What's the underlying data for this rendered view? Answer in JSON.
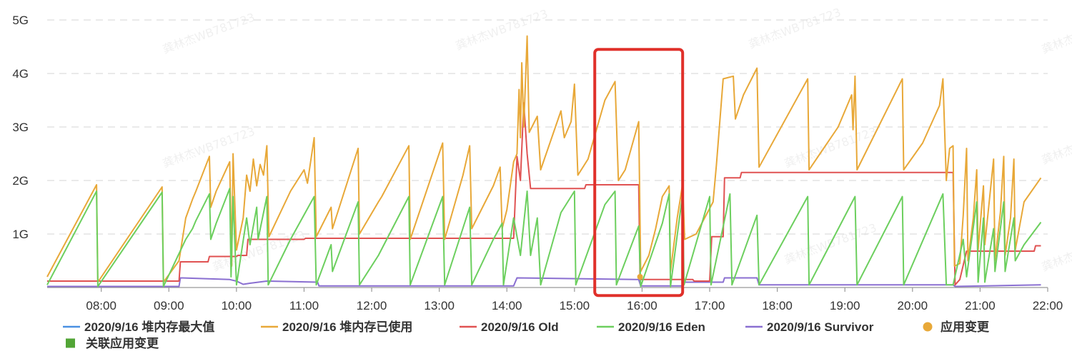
{
  "colors": {
    "heap_max": "#4a90e2",
    "heap_used": "#e8a838",
    "old": "#e05252",
    "eden": "#6ccf5e",
    "survivor": "#8a6fd1",
    "app_change": "#e8a838",
    "related_change": "#52a536",
    "highlight_box": "#e0302a",
    "grid": "#dddddd",
    "axis": "#999999"
  },
  "watermark_text": "龚林杰WB781723",
  "chart_data": {
    "type": "line",
    "title": "",
    "xlabel": "",
    "ylabel": "",
    "x_unit": "hour",
    "xlim": [
      7.2,
      22.0
    ],
    "ylim": [
      0,
      5
    ],
    "y_tick_values": [
      1,
      2,
      3,
      4,
      5
    ],
    "y_tick_labels": [
      "1G",
      "2G",
      "3G",
      "4G",
      "5G"
    ],
    "x_tick_values": [
      8,
      9,
      10,
      11,
      12,
      13,
      14,
      15,
      16,
      17,
      18,
      19,
      20,
      21,
      22
    ],
    "x_tick_labels": [
      "08:00",
      "09:00",
      "10:00",
      "11:00",
      "12:00",
      "13:00",
      "14:00",
      "15:00",
      "16:00",
      "17:00",
      "18:00",
      "19:00",
      "20:00",
      "21:00",
      "22:00"
    ],
    "grid": "horizontal dashed",
    "legend_position": "bottom",
    "highlight_range": {
      "x": [
        15.3,
        16.6
      ],
      "y": [
        -0.15,
        4.45
      ]
    },
    "series": [
      {
        "name": "2020/9/16 堆内存最大值",
        "key": "heap_max",
        "points": []
      },
      {
        "name": "2020/9/16 堆内存已使用",
        "key": "heap_used",
        "points": [
          [
            7.2,
            0.2
          ],
          [
            7.93,
            1.92
          ],
          [
            7.95,
            0.1
          ],
          [
            8.9,
            1.88
          ],
          [
            8.92,
            0.1
          ],
          [
            9.15,
            0.5
          ],
          [
            9.25,
            1.3
          ],
          [
            9.35,
            1.65
          ],
          [
            9.4,
            1.8
          ],
          [
            9.6,
            2.45
          ],
          [
            9.62,
            1.5
          ],
          [
            9.7,
            1.8
          ],
          [
            9.9,
            2.35
          ],
          [
            9.93,
            0.4
          ],
          [
            9.95,
            2.5
          ],
          [
            10.0,
            0.7
          ],
          [
            10.1,
            1.3
          ],
          [
            10.15,
            2.1
          ],
          [
            10.2,
            1.8
          ],
          [
            10.25,
            2.4
          ],
          [
            10.3,
            1.9
          ],
          [
            10.35,
            2.3
          ],
          [
            10.4,
            2.1
          ],
          [
            10.45,
            2.65
          ],
          [
            10.48,
            0.95
          ],
          [
            10.8,
            1.8
          ],
          [
            11.0,
            2.2
          ],
          [
            11.05,
            1.95
          ],
          [
            11.15,
            2.8
          ],
          [
            11.18,
            0.95
          ],
          [
            11.4,
            1.5
          ],
          [
            11.42,
            1.1
          ],
          [
            11.8,
            2.6
          ],
          [
            11.82,
            1.0
          ],
          [
            12.1,
            1.6
          ],
          [
            12.15,
            1.7
          ],
          [
            12.55,
            2.65
          ],
          [
            12.57,
            0.9
          ],
          [
            13.05,
            2.7
          ],
          [
            13.08,
            0.9
          ],
          [
            13.35,
            2.1
          ],
          [
            13.45,
            2.65
          ],
          [
            13.48,
            1.1
          ],
          [
            13.8,
            1.9
          ],
          [
            13.9,
            2.25
          ],
          [
            13.93,
            1.1
          ],
          [
            14.0,
            1.45
          ],
          [
            14.1,
            2.35
          ],
          [
            14.15,
            2.5
          ],
          [
            14.18,
            3.7
          ],
          [
            14.2,
            2.8
          ],
          [
            14.22,
            4.2
          ],
          [
            14.25,
            3.0
          ],
          [
            14.3,
            4.7
          ],
          [
            14.33,
            2.9
          ],
          [
            14.45,
            3.2
          ],
          [
            14.5,
            2.2
          ],
          [
            14.8,
            3.3
          ],
          [
            14.85,
            2.8
          ],
          [
            14.95,
            3.1
          ],
          [
            15.0,
            3.8
          ],
          [
            15.05,
            2.1
          ],
          [
            15.2,
            2.4
          ],
          [
            15.45,
            3.5
          ],
          [
            15.6,
            3.85
          ],
          [
            15.65,
            2.0
          ],
          [
            15.75,
            2.2
          ],
          [
            15.95,
            3.1
          ],
          [
            15.98,
            0.3
          ],
          [
            16.1,
            0.6
          ],
          [
            16.2,
            1.1
          ],
          [
            16.3,
            1.7
          ],
          [
            16.4,
            1.9
          ],
          [
            16.42,
            0.3
          ],
          [
            16.52,
            1.3
          ],
          [
            16.57,
            1.7
          ],
          [
            16.6,
            1.95
          ],
          [
            16.63,
            0.9
          ],
          [
            16.8,
            1.0
          ],
          [
            17.05,
            1.6
          ],
          [
            17.1,
            2.3
          ],
          [
            17.2,
            3.9
          ],
          [
            17.35,
            3.95
          ],
          [
            17.38,
            3.15
          ],
          [
            17.5,
            3.6
          ],
          [
            17.7,
            4.1
          ],
          [
            17.73,
            2.25
          ],
          [
            18.45,
            3.9
          ],
          [
            18.47,
            2.2
          ],
          [
            18.9,
            3.0
          ],
          [
            19.1,
            3.6
          ],
          [
            19.12,
            2.95
          ],
          [
            19.15,
            3.95
          ],
          [
            19.18,
            2.2
          ],
          [
            19.85,
            3.9
          ],
          [
            19.87,
            2.2
          ],
          [
            20.15,
            2.7
          ],
          [
            20.4,
            3.4
          ],
          [
            20.45,
            3.9
          ],
          [
            20.5,
            2.0
          ],
          [
            20.55,
            2.6
          ],
          [
            20.6,
            2.65
          ],
          [
            20.62,
            0.4
          ],
          [
            20.7,
            0.45
          ],
          [
            20.75,
            1.35
          ],
          [
            20.8,
            2.6
          ],
          [
            20.82,
            0.5
          ],
          [
            20.9,
            1.3
          ],
          [
            20.95,
            2.2
          ],
          [
            20.97,
            0.7
          ],
          [
            21.05,
            1.9
          ],
          [
            21.07,
            0.8
          ],
          [
            21.2,
            2.4
          ],
          [
            21.22,
            0.5
          ],
          [
            21.3,
            1.4
          ],
          [
            21.35,
            2.45
          ],
          [
            21.37,
            0.6
          ],
          [
            21.45,
            1.3
          ],
          [
            21.5,
            2.4
          ],
          [
            21.52,
            0.7
          ],
          [
            21.65,
            1.6
          ],
          [
            21.9,
            2.05
          ]
        ]
      },
      {
        "name": "2020/9/16 Old",
        "key": "old",
        "points": [
          [
            7.2,
            0.12
          ],
          [
            9.15,
            0.12
          ],
          [
            9.17,
            0.48
          ],
          [
            9.58,
            0.48
          ],
          [
            9.6,
            0.58
          ],
          [
            10.0,
            0.58
          ],
          [
            10.02,
            0.6
          ],
          [
            10.15,
            0.6
          ],
          [
            10.17,
            0.9
          ],
          [
            11.0,
            0.9
          ],
          [
            11.02,
            0.92
          ],
          [
            14.1,
            0.92
          ],
          [
            14.15,
            2.45
          ],
          [
            14.2,
            2.0
          ],
          [
            14.25,
            3.45
          ],
          [
            14.3,
            2.5
          ],
          [
            14.35,
            1.85
          ],
          [
            15.15,
            1.85
          ],
          [
            15.17,
            1.92
          ],
          [
            15.95,
            1.92
          ],
          [
            15.97,
            0.15
          ],
          [
            16.75,
            0.15
          ],
          [
            16.77,
            0.12
          ],
          [
            17.0,
            0.12
          ],
          [
            17.03,
            0.95
          ],
          [
            17.2,
            0.95
          ],
          [
            17.22,
            2.05
          ],
          [
            17.45,
            2.05
          ],
          [
            17.47,
            2.15
          ],
          [
            20.6,
            2.15
          ],
          [
            20.63,
            0.05
          ],
          [
            20.7,
            0.15
          ],
          [
            20.8,
            0.68
          ],
          [
            21.8,
            0.68
          ],
          [
            21.82,
            0.78
          ],
          [
            21.9,
            0.78
          ]
        ]
      },
      {
        "name": "2020/9/16 Eden",
        "key": "eden",
        "points": [
          [
            7.2,
            0.05
          ],
          [
            7.93,
            1.8
          ],
          [
            7.95,
            0.02
          ],
          [
            8.9,
            1.78
          ],
          [
            8.92,
            0.02
          ],
          [
            9.25,
            0.9
          ],
          [
            9.35,
            1.1
          ],
          [
            9.4,
            1.25
          ],
          [
            9.6,
            1.75
          ],
          [
            9.62,
            0.9
          ],
          [
            9.7,
            1.2
          ],
          [
            9.9,
            1.85
          ],
          [
            9.92,
            0.2
          ],
          [
            9.95,
            1.7
          ],
          [
            10.0,
            0.05
          ],
          [
            10.15,
            1.3
          ],
          [
            10.2,
            0.8
          ],
          [
            10.3,
            1.5
          ],
          [
            10.32,
            0.9
          ],
          [
            10.45,
            1.7
          ],
          [
            10.47,
            0.05
          ],
          [
            10.8,
            0.9
          ],
          [
            11.15,
            1.7
          ],
          [
            11.18,
            0.05
          ],
          [
            11.4,
            0.8
          ],
          [
            11.42,
            0.3
          ],
          [
            11.8,
            1.6
          ],
          [
            11.82,
            0.05
          ],
          [
            12.1,
            0.6
          ],
          [
            12.55,
            1.7
          ],
          [
            12.57,
            0.05
          ],
          [
            13.05,
            1.7
          ],
          [
            13.08,
            0.05
          ],
          [
            13.45,
            1.5
          ],
          [
            13.48,
            0.05
          ],
          [
            13.8,
            0.9
          ],
          [
            13.93,
            1.2
          ],
          [
            13.95,
            0.05
          ],
          [
            14.1,
            1.3
          ],
          [
            14.2,
            0.6
          ],
          [
            14.3,
            1.8
          ],
          [
            14.35,
            0.6
          ],
          [
            14.45,
            1.3
          ],
          [
            14.5,
            0.05
          ],
          [
            14.8,
            1.4
          ],
          [
            15.0,
            1.8
          ],
          [
            15.02,
            0.05
          ],
          [
            15.45,
            1.55
          ],
          [
            15.6,
            1.8
          ],
          [
            15.62,
            0.05
          ],
          [
            15.95,
            1.15
          ],
          [
            15.98,
            0.02
          ],
          [
            16.3,
            1.2
          ],
          [
            16.4,
            1.75
          ],
          [
            16.42,
            0.02
          ],
          [
            16.6,
            1.75
          ],
          [
            16.62,
            0.05
          ],
          [
            17.0,
            1.7
          ],
          [
            17.02,
            0.05
          ],
          [
            17.3,
            1.75
          ],
          [
            17.33,
            0.05
          ],
          [
            17.7,
            1.35
          ],
          [
            17.73,
            0.05
          ],
          [
            18.45,
            1.7
          ],
          [
            18.47,
            0.05
          ],
          [
            19.15,
            1.7
          ],
          [
            19.18,
            0.05
          ],
          [
            19.85,
            1.7
          ],
          [
            19.87,
            0.05
          ],
          [
            20.45,
            1.75
          ],
          [
            20.5,
            0.05
          ],
          [
            20.6,
            0.05
          ],
          [
            20.75,
            0.9
          ],
          [
            20.8,
            0.2
          ],
          [
            20.95,
            1.6
          ],
          [
            20.97,
            0.1
          ],
          [
            21.05,
            1.3
          ],
          [
            21.07,
            0.1
          ],
          [
            21.2,
            1.1
          ],
          [
            21.22,
            0.3
          ],
          [
            21.35,
            1.6
          ],
          [
            21.37,
            0.3
          ],
          [
            21.5,
            1.3
          ],
          [
            21.52,
            0.5
          ],
          [
            21.65,
            0.8
          ],
          [
            21.9,
            1.22
          ]
        ]
      },
      {
        "name": "2020/9/16 Survivor",
        "key": "survivor",
        "points": [
          [
            7.2,
            0.02
          ],
          [
            9.15,
            0.02
          ],
          [
            9.17,
            0.18
          ],
          [
            9.9,
            0.15
          ],
          [
            10.0,
            0.12
          ],
          [
            10.1,
            0.06
          ],
          [
            10.2,
            0.08
          ],
          [
            10.45,
            0.12
          ],
          [
            11.2,
            0.1
          ],
          [
            11.22,
            0.03
          ],
          [
            14.1,
            0.03
          ],
          [
            14.15,
            0.18
          ],
          [
            15.95,
            0.15
          ],
          [
            15.98,
            0.03
          ],
          [
            16.6,
            0.03
          ],
          [
            16.62,
            0.1
          ],
          [
            17.2,
            0.1
          ],
          [
            17.22,
            0.18
          ],
          [
            17.7,
            0.18
          ],
          [
            17.73,
            0.05
          ],
          [
            20.6,
            0.05
          ],
          [
            20.63,
            0.02
          ],
          [
            21.9,
            0.05
          ]
        ]
      },
      {
        "name": "应用变更",
        "key": "app_change",
        "marker": "circle",
        "points": [
          [
            15.97,
            0.2
          ]
        ]
      },
      {
        "name": "关联应用变更",
        "key": "related_change",
        "marker": "square",
        "points": []
      }
    ]
  }
}
